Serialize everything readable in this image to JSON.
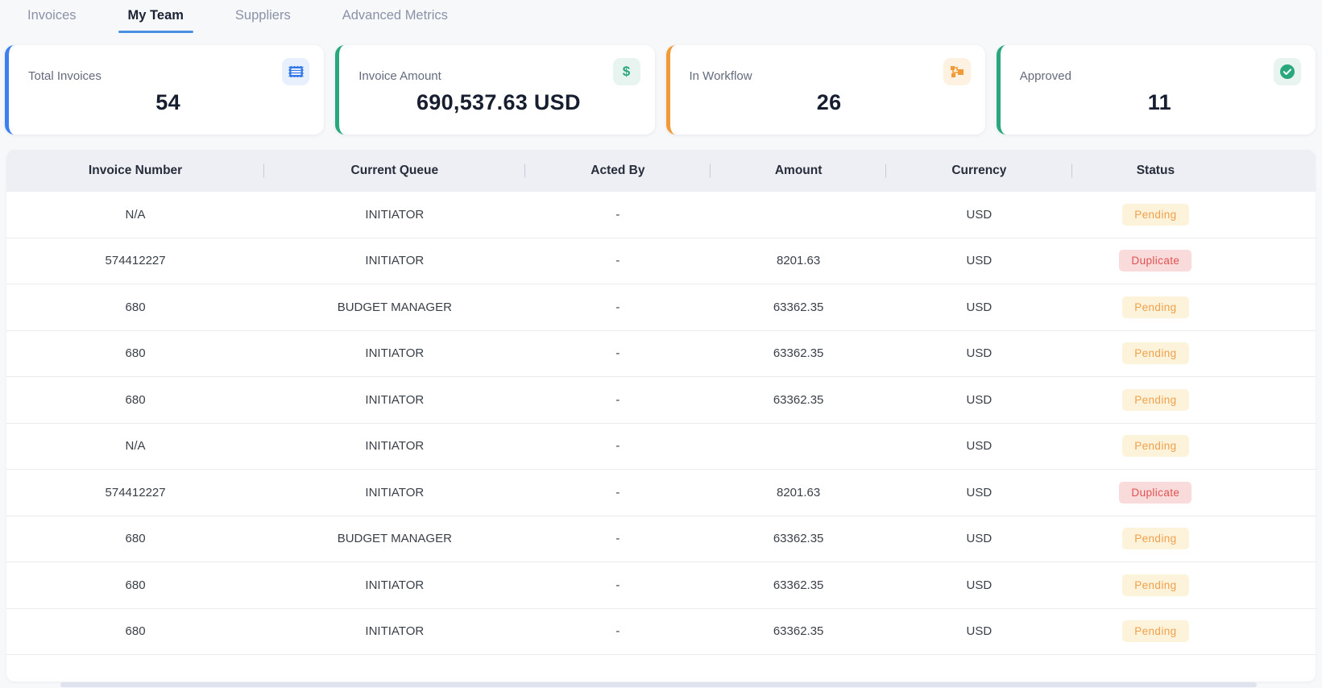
{
  "tabs": [
    {
      "label": "Invoices",
      "active": false
    },
    {
      "label": "My Team",
      "active": true
    },
    {
      "label": "Suppliers",
      "active": false
    },
    {
      "label": "Advanced Metrics",
      "active": false
    }
  ],
  "tab_underline_color": "#4a90e2",
  "cards": [
    {
      "label": "Total Invoices",
      "value": "54",
      "accent": "#3b7ff0",
      "icon": "receipt-icon"
    },
    {
      "label": "Invoice Amount",
      "value": "690,537.63 USD",
      "accent": "#2aa87d",
      "icon": "dollar-icon"
    },
    {
      "label": "In Workflow",
      "value": "26",
      "accent": "#f19b38",
      "icon": "workflow-icon"
    },
    {
      "label": "Approved",
      "value": "11",
      "accent": "#2aa87d",
      "icon": "check-circle-icon"
    }
  ],
  "icons": {
    "dollar_glyph": "$"
  },
  "table": {
    "columns": [
      "Invoice Number",
      "Current Queue",
      "Acted By",
      "Amount",
      "Currency",
      "Status"
    ],
    "rows": [
      {
        "cells": [
          "N/A",
          "INITIATOR",
          "-",
          "",
          "USD"
        ],
        "status": "Pending"
      },
      {
        "cells": [
          "574412227",
          "INITIATOR",
          "-",
          "8201.63",
          "USD"
        ],
        "status": "Duplicate"
      },
      {
        "cells": [
          "680",
          "BUDGET MANAGER",
          "-",
          "63362.35",
          "USD"
        ],
        "status": "Pending"
      },
      {
        "cells": [
          "680",
          "INITIATOR",
          "-",
          "63362.35",
          "USD"
        ],
        "status": "Pending"
      },
      {
        "cells": [
          "680",
          "INITIATOR",
          "-",
          "63362.35",
          "USD"
        ],
        "status": "Pending"
      },
      {
        "cells": [
          "N/A",
          "INITIATOR",
          "-",
          "",
          "USD"
        ],
        "status": "Pending"
      },
      {
        "cells": [
          "574412227",
          "INITIATOR",
          "-",
          "8201.63",
          "USD"
        ],
        "status": "Duplicate"
      },
      {
        "cells": [
          "680",
          "BUDGET MANAGER",
          "-",
          "63362.35",
          "USD"
        ],
        "status": "Pending"
      },
      {
        "cells": [
          "680",
          "INITIATOR",
          "-",
          "63362.35",
          "USD"
        ],
        "status": "Pending"
      },
      {
        "cells": [
          "680",
          "INITIATOR",
          "-",
          "63362.35",
          "USD"
        ],
        "status": "Pending"
      }
    ],
    "status_styles": {
      "Pending": {
        "bg": "#fdf3da",
        "text": "#f0a04c"
      },
      "Duplicate": {
        "bg": "#f9dbdb",
        "text": "#e05252"
      }
    }
  }
}
